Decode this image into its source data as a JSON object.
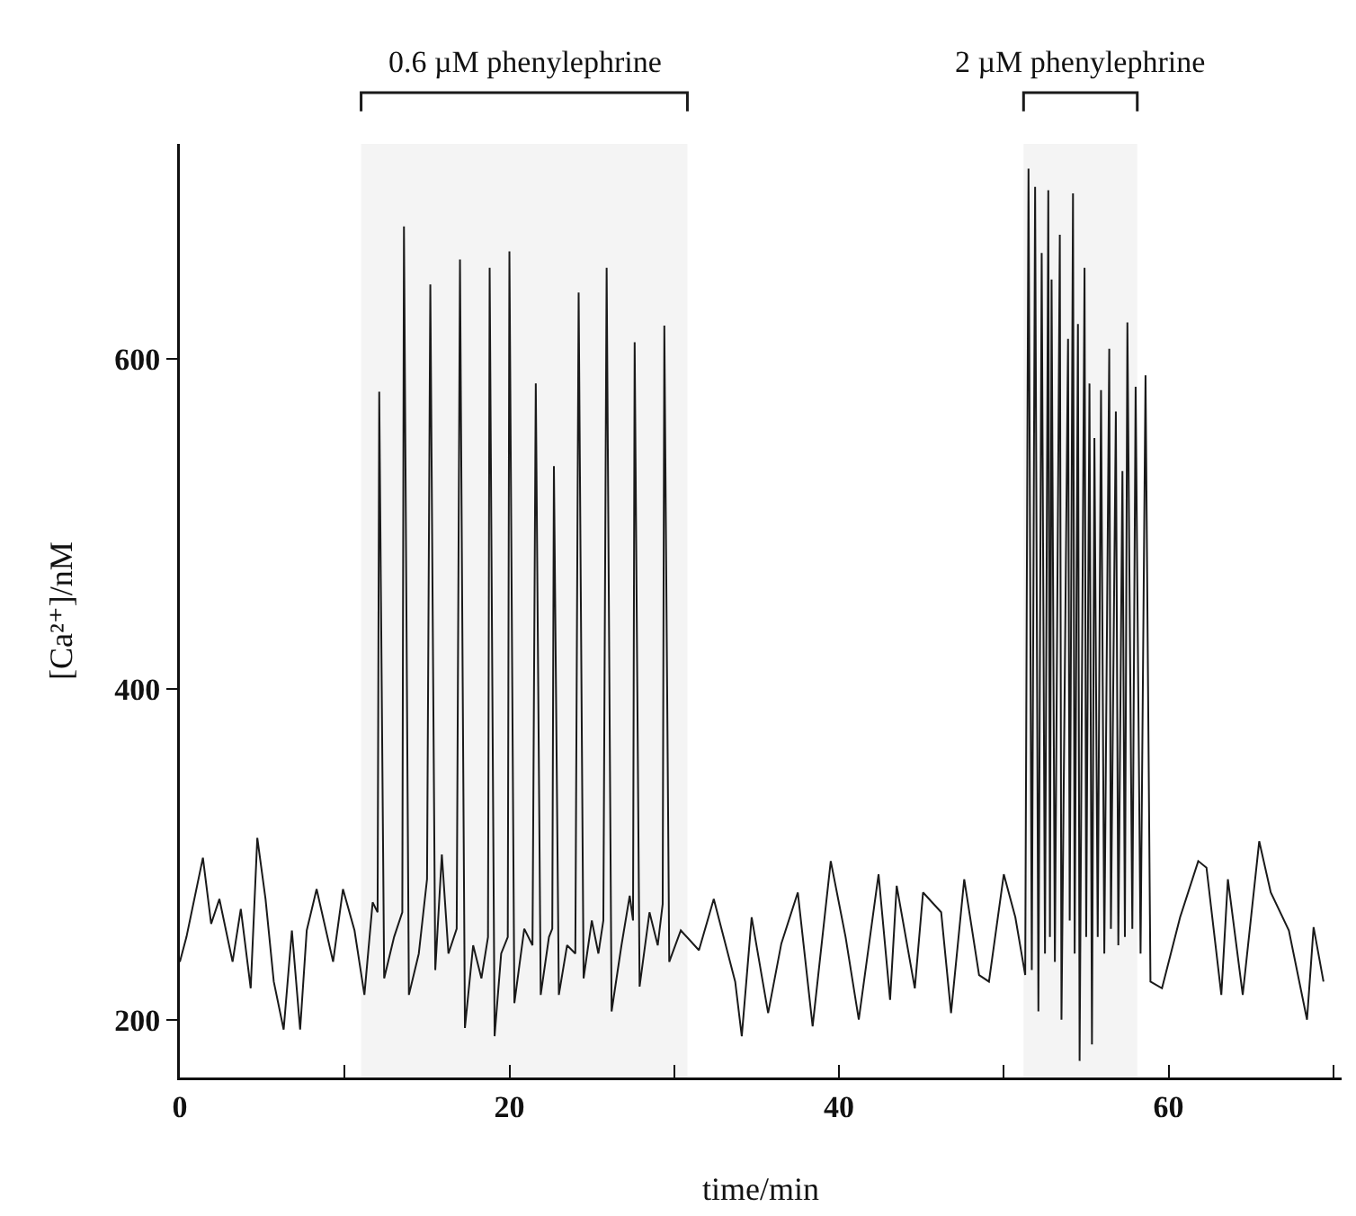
{
  "chart_data": {
    "type": "line",
    "xlabel": "time/min",
    "ylabel": "[Ca²⁺]/nM",
    "xlim": [
      0,
      70.5
    ],
    "xticks": [
      0,
      {
        "value": 10,
        "label": null
      },
      20,
      {
        "value": 30,
        "label": null
      },
      40,
      {
        "value": 50,
        "label": null
      },
      60,
      {
        "value": 70,
        "label": null
      }
    ],
    "ylim": [
      165,
      730
    ],
    "yticks": [
      200,
      400,
      600
    ],
    "bands": [
      {
        "axis": "x",
        "from": 11,
        "to": 30.8,
        "label": "0.6 µM phenylephrine"
      },
      {
        "axis": "x",
        "from": 51.2,
        "to": 58.1,
        "label": "2 µM phenylephrine"
      }
    ],
    "x": [
      0,
      0.4,
      1.4,
      1.9,
      2.4,
      3.2,
      3.7,
      4.3,
      4.7,
      5.2,
      5.7,
      6.3,
      6.8,
      7.3,
      7.7,
      8.3,
      9.3,
      9.9,
      10.6,
      11.2,
      11.7,
      12.0,
      12.1,
      12.4,
      13.0,
      13.5,
      13.6,
      13.9,
      14.5,
      15.0,
      15.2,
      15.5,
      15.9,
      16.3,
      16.8,
      17.0,
      17.3,
      17.8,
      18.3,
      18.7,
      18.8,
      19.1,
      19.5,
      19.9,
      20.0,
      20.3,
      20.9,
      21.4,
      21.6,
      21.9,
      22.4,
      22.6,
      22.7,
      23.0,
      23.5,
      24.0,
      24.2,
      24.5,
      25.0,
      25.4,
      25.7,
      25.9,
      26.2,
      26.8,
      27.3,
      27.5,
      27.6,
      27.9,
      28.5,
      29.0,
      29.3,
      29.4,
      29.7,
      30.4,
      31.5,
      32.4,
      33.7,
      34.1,
      34.7,
      35.7,
      36.5,
      37.5,
      38.4,
      39.5,
      40.4,
      41.2,
      42.4,
      43.1,
      43.5,
      44.6,
      45.1,
      46.2,
      46.8,
      47.6,
      48.5,
      49.1,
      50.0,
      50.7,
      51.3,
      51.5,
      51.7,
      51.9,
      52.1,
      52.3,
      52.5,
      52.7,
      52.8,
      52.9,
      53.1,
      53.4,
      53.5,
      53.9,
      54.0,
      54.2,
      54.3,
      54.5,
      54.6,
      54.9,
      55.0,
      55.2,
      55.35,
      55.5,
      55.7,
      55.9,
      56.1,
      56.4,
      56.5,
      56.8,
      56.95,
      57.2,
      57.35,
      57.5,
      57.8,
      58.0,
      58.3,
      58.6,
      58.9,
      59.6,
      60.7,
      61.8,
      62.3,
      63.2,
      63.6,
      64.5,
      65.5,
      66.2,
      67.3,
      68.4,
      68.8,
      69.4
    ],
    "series": [
      {
        "color": "#1a1a1a",
        "values": [
          235,
          250,
          298,
          258,
          273,
          235,
          267,
          219,
          310,
          273,
          223,
          194,
          254,
          194,
          254,
          279,
          235,
          279,
          254,
          215,
          271,
          265,
          580,
          225,
          250,
          265,
          680,
          215,
          240,
          285,
          645,
          230,
          300,
          240,
          255,
          660,
          195,
          245,
          225,
          250,
          655,
          190,
          240,
          250,
          665,
          210,
          255,
          245,
          585,
          215,
          250,
          255,
          535,
          215,
          245,
          240,
          640,
          225,
          260,
          240,
          260,
          655,
          205,
          245,
          275,
          260,
          610,
          220,
          265,
          245,
          270,
          620,
          235,
          254,
          242,
          273,
          223,
          190,
          262,
          204,
          246,
          277,
          196,
          296,
          250,
          200,
          288,
          212,
          281,
          219,
          277,
          265,
          204,
          285,
          227,
          223,
          288,
          262,
          227,
          715,
          230,
          704,
          205,
          664,
          240,
          702,
          250,
          648,
          235,
          675,
          200,
          612,
          260,
          700,
          240,
          621,
          175,
          655,
          250,
          585,
          185,
          552,
          250,
          581,
          240,
          606,
          255,
          568,
          245,
          532,
          250,
          622,
          255,
          583,
          240,
          590,
          223,
          219,
          262,
          296,
          292,
          215,
          285,
          215,
          308,
          277,
          254,
          200,
          256,
          223
        ]
      }
    ]
  }
}
